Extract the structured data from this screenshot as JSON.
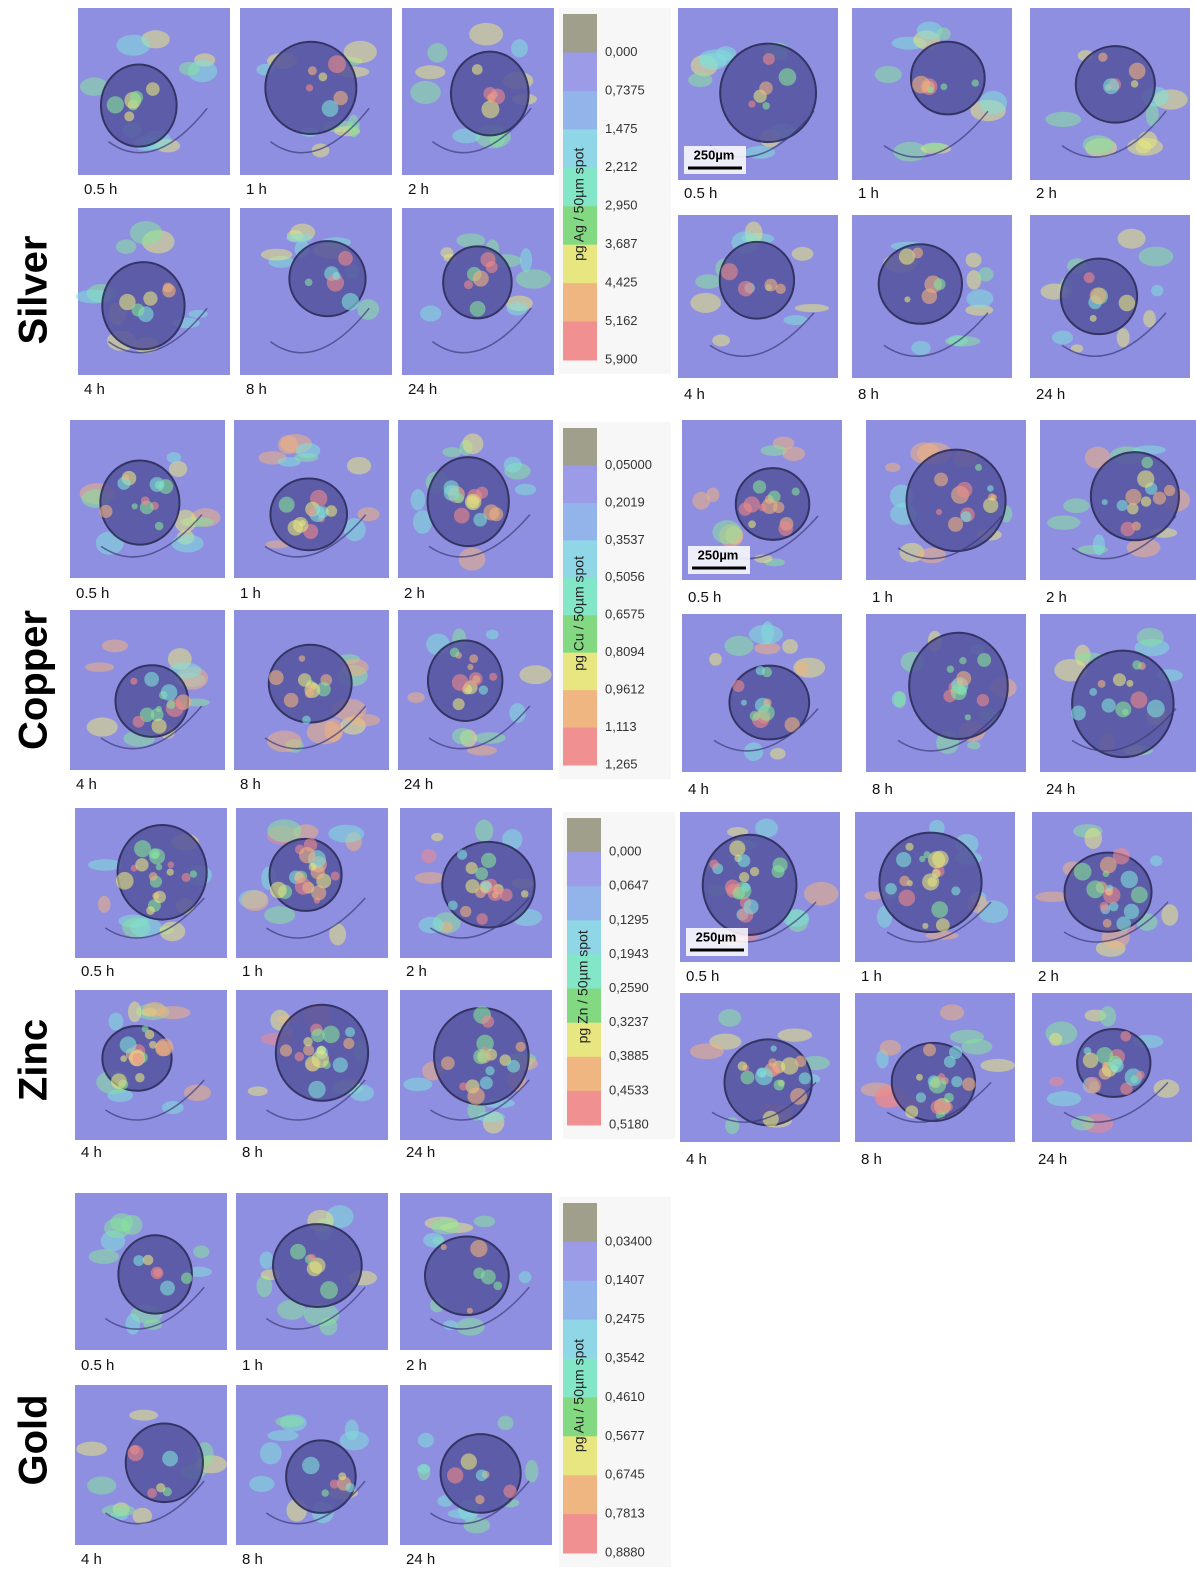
{
  "rows": [
    {
      "element": "Silver",
      "colorbar": {
        "label": "pg Ag / 50µm spot",
        "ticks": [
          "0,000",
          "0,7375",
          "1,475",
          "2,212",
          "2,950",
          "3,687",
          "4,425",
          "5,162",
          "5,900"
        ]
      },
      "left": {
        "times": [
          "0.5 h",
          "1 h",
          "2 h",
          "4 h",
          "8 h",
          "24 h"
        ]
      },
      "right": {
        "times": [
          "0.5 h",
          "1 h",
          "2 h",
          "4 h",
          "8 h",
          "24 h"
        ],
        "scale_bar": "250µm"
      }
    },
    {
      "element": "Copper",
      "colorbar": {
        "label": "pg Cu / 50µm spot",
        "ticks": [
          "0,05000",
          "0,2019",
          "0,3537",
          "0,5056",
          "0,6575",
          "0,8094",
          "0,9612",
          "1,113",
          "1,265"
        ]
      },
      "left": {
        "times": [
          "0.5 h",
          "1 h",
          "2 h",
          "4 h",
          "8 h",
          "24 h"
        ]
      },
      "right": {
        "times": [
          "0.5 h",
          "1 h",
          "2 h",
          "4 h",
          "8 h",
          "24 h"
        ],
        "scale_bar": "250µm"
      }
    },
    {
      "element": "Zinc",
      "colorbar": {
        "label": "pg Zn / 50µm spot",
        "ticks": [
          "0,000",
          "0,0647",
          "0,1295",
          "0,1943",
          "0,2590",
          "0,3237",
          "0,3885",
          "0,4533",
          "0,5180"
        ]
      },
      "left": {
        "times": [
          "0.5 h",
          "1 h",
          "2 h",
          "4 h",
          "8 h",
          "24 h"
        ]
      },
      "right": {
        "times": [
          "0.5 h",
          "1 h",
          "2 h",
          "4 h",
          "8 h",
          "24 h"
        ],
        "scale_bar": "250µm"
      }
    },
    {
      "element": "Gold",
      "colorbar": {
        "label": "pg Au / 50µm spot",
        "ticks": [
          "0,03400",
          "0,1407",
          "0,2475",
          "0,3542",
          "0,4610",
          "0,5677",
          "0,6745",
          "0,7813",
          "0,8880"
        ]
      },
      "left": {
        "times": [
          "0.5 h",
          "1 h",
          "2 h",
          "4 h",
          "8 h",
          "24 h"
        ]
      }
    }
  ]
}
